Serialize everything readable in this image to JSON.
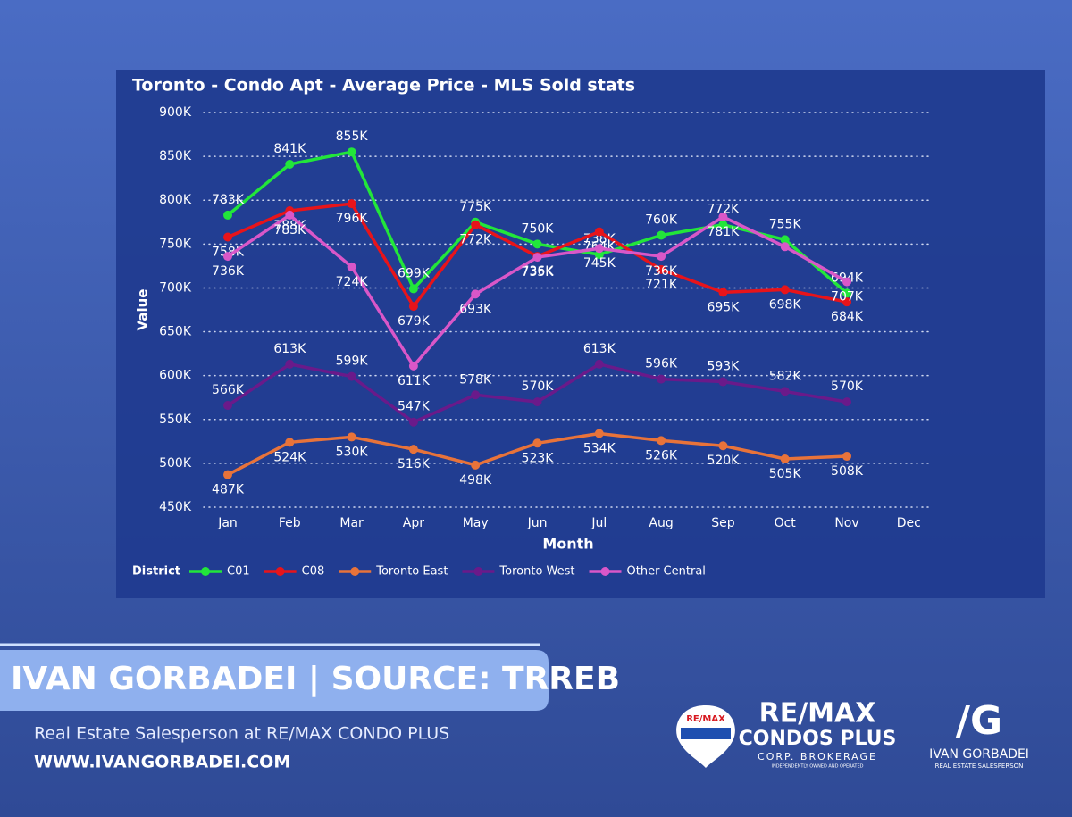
{
  "chart_data": {
    "type": "line",
    "title": "Toronto - Condo Apt - Average Price - MLS Sold stats",
    "x_label": "Month",
    "y_label": "Value",
    "legend_title": "District",
    "categories": [
      "Jan",
      "Feb",
      "Mar",
      "Apr",
      "May",
      "Jun",
      "Jul",
      "Aug",
      "Sep",
      "Oct",
      "Nov",
      "Dec"
    ],
    "ylim": [
      450,
      900
    ],
    "yticks": [
      {
        "value": 450,
        "label": "450K"
      },
      {
        "value": 500,
        "label": "500K"
      },
      {
        "value": 550,
        "label": "550K"
      },
      {
        "value": 600,
        "label": "600K"
      },
      {
        "value": 650,
        "label": "650K"
      },
      {
        "value": 700,
        "label": "700K"
      },
      {
        "value": 750,
        "label": "750K"
      },
      {
        "value": 800,
        "label": "800K"
      },
      {
        "value": 850,
        "label": "850K"
      },
      {
        "value": 900,
        "label": "900K"
      }
    ],
    "grid": true,
    "legend": "bottom",
    "series": [
      {
        "name": "C01",
        "color": "#22e63a",
        "values": [
          783,
          841,
          855,
          699,
          775,
          750,
          738,
          760,
          772,
          755,
          694,
          null
        ],
        "value_labels": [
          "783K",
          "841K",
          "855K",
          "699K",
          "775K",
          "750K",
          "738K",
          "760K",
          "772K",
          "755K",
          "694K",
          null
        ]
      },
      {
        "name": "C08",
        "color": "#e8141a",
        "values": [
          758,
          788,
          796,
          679,
          772,
          736,
          764,
          721,
          695,
          698,
          684,
          null
        ],
        "value_labels": [
          "758K",
          "788K",
          "796K",
          "679K",
          "772K",
          "736K",
          "764K",
          "721K",
          "695K",
          "698K",
          "684K",
          null
        ]
      },
      {
        "name": "Toronto East",
        "color": "#e8733a",
        "values": [
          487,
          524,
          530,
          516,
          498,
          523,
          534,
          526,
          520,
          505,
          508,
          null
        ],
        "value_labels": [
          "487K",
          "524K",
          "530K",
          "516K",
          "498K",
          "523K",
          "534K",
          "526K",
          "520K",
          "505K",
          "508K",
          null
        ]
      },
      {
        "name": "Toronto West",
        "color": "#6a1a8a",
        "values": [
          566,
          613,
          599,
          547,
          578,
          570,
          613,
          596,
          593,
          582,
          570,
          null
        ],
        "value_labels": [
          "566K",
          "613K",
          "599K",
          "547K",
          "578K",
          "570K",
          "613K",
          "596K",
          "593K",
          "582K",
          "570K",
          null
        ]
      },
      {
        "name": "Other Central",
        "color": "#d957c8",
        "values": [
          736,
          783,
          724,
          611,
          693,
          735,
          745,
          736,
          781,
          747,
          707,
          null
        ],
        "value_labels": [
          "736K",
          "783K",
          "724K",
          "611K",
          "693K",
          "735K",
          "745K",
          "736K",
          "781K",
          null,
          "707K",
          null
        ]
      }
    ]
  },
  "branding": {
    "banner": "IVAN GORBADEI  |  SOURCE: TRREB",
    "subtitle": "Real Estate Salesperson at RE/MAX CONDO PLUS",
    "website": "WWW.IVANGORBADEI.COM",
    "balloon": "RE/MAX",
    "brokerage_line1": "RE/MAX",
    "brokerage_line2": "CONDOS PLUS",
    "brokerage_line3": "CORP. BROKERAGE",
    "brokerage_line4": "INDEPENDENTLY OWNED AND OPERATED",
    "monogram": "/G",
    "agent_name": "IVAN GORBADEI",
    "agent_title": "REAL ESTATE SALESPERSON"
  }
}
